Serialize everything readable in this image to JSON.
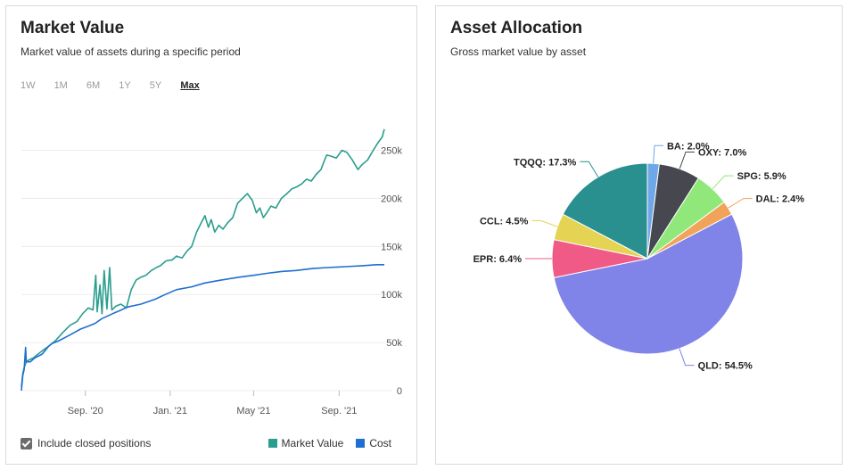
{
  "market_value": {
    "title": "Market Value",
    "subtitle": "Market value of assets during a specific period",
    "ranges": [
      "1W",
      "1M",
      "6M",
      "1Y",
      "5Y",
      "Max"
    ],
    "active_range": "Max",
    "include_closed_label": "Include closed positions",
    "include_closed_checked": true
  },
  "asset_allocation": {
    "title": "Asset Allocation",
    "subtitle": "Gross market value by asset"
  },
  "chart_data": [
    {
      "type": "line",
      "title": "Market Value",
      "x_range": [
        "2020-06-01",
        "2021-11-05"
      ],
      "ylim": [
        0,
        270000
      ],
      "y_ticks": [
        0,
        50000,
        100000,
        150000,
        200000,
        250000
      ],
      "y_tick_labels": [
        "0",
        "50k",
        "100k",
        "150k",
        "200k",
        "250k"
      ],
      "x_ticks": [
        "2020-09-01",
        "2021-01-01",
        "2021-05-01",
        "2021-09-01"
      ],
      "x_tick_labels": [
        "Sep. '20",
        "Jan. '21",
        "May '21",
        "Sep. '21"
      ],
      "grid": true,
      "legend_position": "bottom-right",
      "series": [
        {
          "name": "Market Value",
          "color": "#2a9d8f",
          "points": [
            [
              "2020-06-01",
              4000
            ],
            [
              "2020-06-03",
              18000
            ],
            [
              "2020-06-05",
              24000
            ],
            [
              "2020-06-08",
              30000
            ],
            [
              "2020-06-12",
              32000
            ],
            [
              "2020-06-18",
              34000
            ],
            [
              "2020-06-25",
              38000
            ],
            [
              "2020-07-02",
              42000
            ],
            [
              "2020-07-10",
              46000
            ],
            [
              "2020-07-20",
              52000
            ],
            [
              "2020-07-30",
              60000
            ],
            [
              "2020-08-10",
              68000
            ],
            [
              "2020-08-20",
              72000
            ],
            [
              "2020-08-28",
              80000
            ],
            [
              "2020-09-05",
              86000
            ],
            [
              "2020-09-12",
              84000
            ],
            [
              "2020-09-16",
              120000
            ],
            [
              "2020-09-18",
              82000
            ],
            [
              "2020-09-22",
              110000
            ],
            [
              "2020-09-25",
              80000
            ],
            [
              "2020-09-28",
              125000
            ],
            [
              "2020-10-02",
              85000
            ],
            [
              "2020-10-06",
              128000
            ],
            [
              "2020-10-09",
              84000
            ],
            [
              "2020-10-15",
              88000
            ],
            [
              "2020-10-22",
              90000
            ],
            [
              "2020-10-30",
              86000
            ],
            [
              "2020-11-06",
              105000
            ],
            [
              "2020-11-13",
              115000
            ],
            [
              "2020-11-20",
              118000
            ],
            [
              "2020-11-27",
              120000
            ],
            [
              "2020-12-05",
              125000
            ],
            [
              "2020-12-12",
              128000
            ],
            [
              "2020-12-18",
              130000
            ],
            [
              "2020-12-26",
              135000
            ],
            [
              "2021-01-04",
              136000
            ],
            [
              "2021-01-10",
              140000
            ],
            [
              "2021-01-18",
              138000
            ],
            [
              "2021-01-25",
              145000
            ],
            [
              "2021-02-01",
              150000
            ],
            [
              "2021-02-08",
              165000
            ],
            [
              "2021-02-15",
              175000
            ],
            [
              "2021-02-20",
              182000
            ],
            [
              "2021-02-25",
              170000
            ],
            [
              "2021-03-01",
              178000
            ],
            [
              "2021-03-06",
              165000
            ],
            [
              "2021-03-12",
              172000
            ],
            [
              "2021-03-18",
              168000
            ],
            [
              "2021-03-25",
              175000
            ],
            [
              "2021-04-01",
              180000
            ],
            [
              "2021-04-08",
              195000
            ],
            [
              "2021-04-15",
              200000
            ],
            [
              "2021-04-22",
              205000
            ],
            [
              "2021-04-29",
              198000
            ],
            [
              "2021-05-05",
              185000
            ],
            [
              "2021-05-10",
              190000
            ],
            [
              "2021-05-15",
              180000
            ],
            [
              "2021-05-20",
              185000
            ],
            [
              "2021-05-26",
              192000
            ],
            [
              "2021-06-02",
              190000
            ],
            [
              "2021-06-10",
              200000
            ],
            [
              "2021-06-18",
              205000
            ],
            [
              "2021-06-25",
              210000
            ],
            [
              "2021-07-02",
              212000
            ],
            [
              "2021-07-09",
              215000
            ],
            [
              "2021-07-16",
              220000
            ],
            [
              "2021-07-23",
              218000
            ],
            [
              "2021-07-30",
              225000
            ],
            [
              "2021-08-06",
              230000
            ],
            [
              "2021-08-10",
              238000
            ],
            [
              "2021-08-14",
              245000
            ],
            [
              "2021-08-20",
              244000
            ],
            [
              "2021-08-28",
              242000
            ],
            [
              "2021-09-05",
              250000
            ],
            [
              "2021-09-12",
              248000
            ],
            [
              "2021-09-20",
              240000
            ],
            [
              "2021-09-28",
              230000
            ],
            [
              "2021-10-04",
              235000
            ],
            [
              "2021-10-12",
              240000
            ],
            [
              "2021-10-20",
              250000
            ],
            [
              "2021-10-27",
              258000
            ],
            [
              "2021-11-02",
              264000
            ],
            [
              "2021-11-05",
              272000
            ]
          ]
        },
        {
          "name": "Cost",
          "color": "#1f6fcf",
          "points": [
            [
              "2020-06-01",
              0
            ],
            [
              "2020-06-03",
              16000
            ],
            [
              "2020-06-05",
              22000
            ],
            [
              "2020-06-07",
              45000
            ],
            [
              "2020-06-08",
              30000
            ],
            [
              "2020-06-14",
              30000
            ],
            [
              "2020-06-20",
              34000
            ],
            [
              "2020-07-01",
              38000
            ],
            [
              "2020-07-10",
              46000
            ],
            [
              "2020-07-15",
              49000
            ],
            [
              "2020-07-25",
              52000
            ],
            [
              "2020-08-05",
              56000
            ],
            [
              "2020-08-15",
              60000
            ],
            [
              "2020-08-25",
              64000
            ],
            [
              "2020-09-05",
              67000
            ],
            [
              "2020-09-15",
              70000
            ],
            [
              "2020-09-25",
              75000
            ],
            [
              "2020-10-10",
              80000
            ],
            [
              "2020-10-20",
              83000
            ],
            [
              "2020-11-01",
              87000
            ],
            [
              "2020-11-20",
              90000
            ],
            [
              "2020-12-10",
              95000
            ],
            [
              "2020-12-25",
              100000
            ],
            [
              "2021-01-10",
              105000
            ],
            [
              "2021-02-01",
              108000
            ],
            [
              "2021-02-20",
              112000
            ],
            [
              "2021-03-15",
              115000
            ],
            [
              "2021-04-10",
              118000
            ],
            [
              "2021-05-01",
              120000
            ],
            [
              "2021-05-20",
              122000
            ],
            [
              "2021-06-10",
              124000
            ],
            [
              "2021-07-01",
              125000
            ],
            [
              "2021-07-25",
              127000
            ],
            [
              "2021-08-15",
              128000
            ],
            [
              "2021-09-10",
              129000
            ],
            [
              "2021-10-05",
              130000
            ],
            [
              "2021-10-25",
              131000
            ],
            [
              "2021-11-05",
              131000
            ]
          ]
        }
      ]
    },
    {
      "type": "pie",
      "title": "Asset Allocation",
      "slices": [
        {
          "label": "BA",
          "value": 2.0,
          "text": "BA: 2.0%",
          "color": "#6ea8e8"
        },
        {
          "label": "OXY",
          "value": 7.0,
          "text": "OXY: 7.0%",
          "color": "#46474f"
        },
        {
          "label": "SPG",
          "value": 5.9,
          "text": "SPG: 5.9%",
          "color": "#8fe879"
        },
        {
          "label": "DAL",
          "value": 2.4,
          "text": "DAL: 2.4%",
          "color": "#f2a35a"
        },
        {
          "label": "QLD",
          "value": 54.5,
          "text": "QLD: 54.5%",
          "color": "#8083e8"
        },
        {
          "label": "EPR",
          "value": 6.4,
          "text": "EPR: 6.4%",
          "color": "#ef5b86"
        },
        {
          "label": "CCL",
          "value": 4.5,
          "text": "CCL: 4.5%",
          "color": "#e5d354"
        },
        {
          "label": "TQQQ",
          "value": 17.3,
          "text": "TQQQ: 17.3%",
          "color": "#2a8f8f"
        }
      ]
    }
  ]
}
